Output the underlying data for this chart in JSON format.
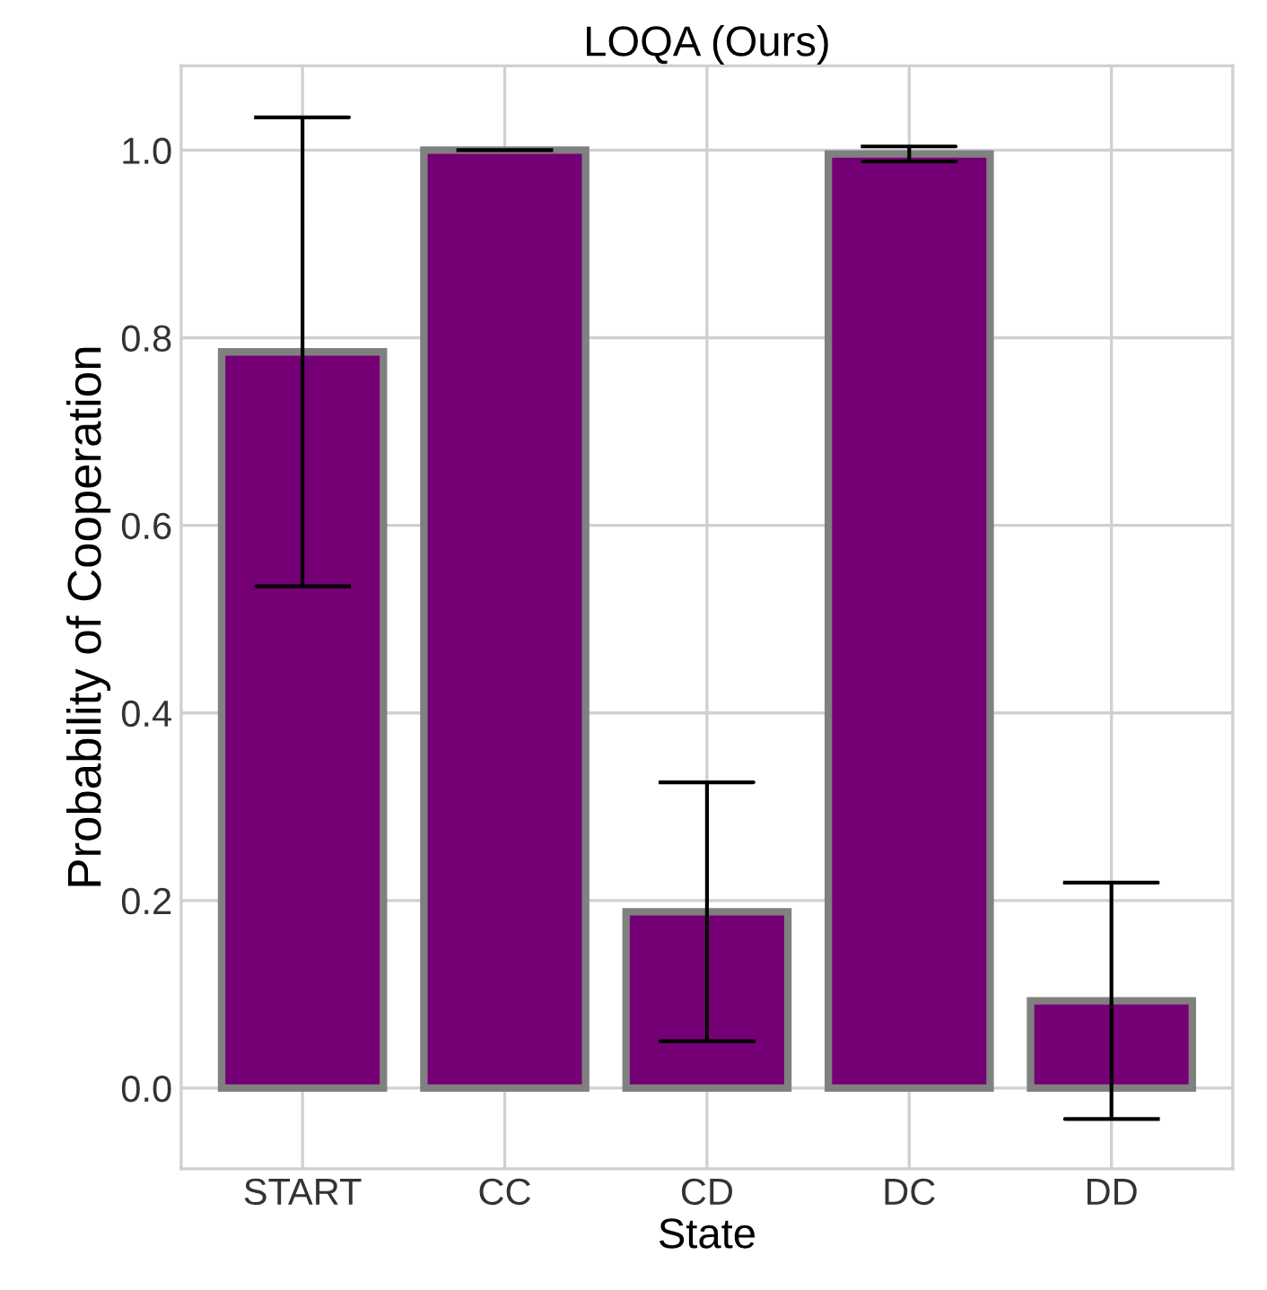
{
  "chart_data": {
    "type": "bar",
    "title": "LOQA (Ours)",
    "xlabel": "State",
    "ylabel": "Probability of Cooperation",
    "categories": [
      "START",
      "CC",
      "CD",
      "DC",
      "DD"
    ],
    "values": [
      0.785,
      1.0,
      0.188,
      0.996,
      0.093
    ],
    "errors": [
      0.25,
      0,
      0.138,
      0.008,
      0.126
    ],
    "color": "#750075",
    "ylim": [
      -0.086,
      1.09
    ],
    "yticks": [
      {
        "value": 0,
        "label": "0.0"
      },
      0.2,
      0.4,
      0.6,
      0.8,
      {
        "value": 1,
        "label": "1.0"
      }
    ],
    "grid": true
  }
}
